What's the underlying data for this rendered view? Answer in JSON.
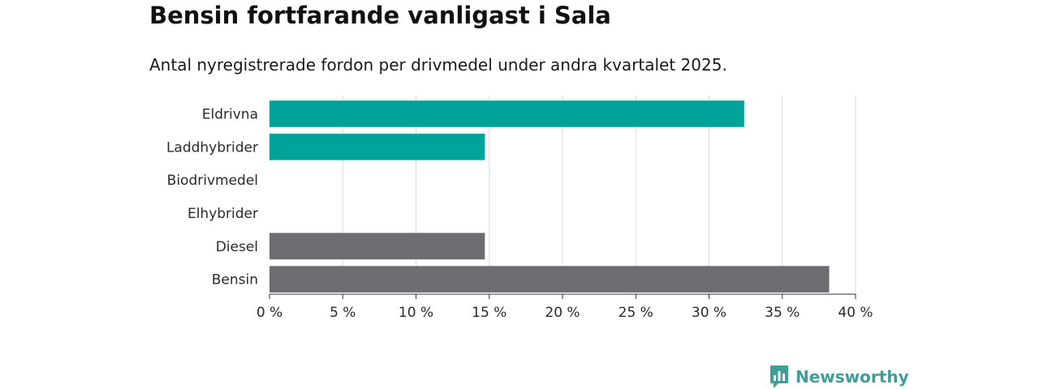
{
  "title": "Bensin fortfarande vanligast i Sala",
  "subtitle": "Antal nyregistrerade fordon per drivmedel under andra kvartalet 2025.",
  "brand": {
    "name": "Newsworthy",
    "icon": "newsworthy-logo-icon"
  },
  "colors": {
    "accent": "#00a39a",
    "neutral": "#6d6c71",
    "grid": "#d9d9d9",
    "brand": "#3f9e97"
  },
  "chart_data": {
    "type": "bar",
    "orientation": "horizontal",
    "title": "Bensin fortfarande vanligast i Sala",
    "subtitle": "Antal nyregistrerade fordon per drivmedel under andra kvartalet 2025.",
    "categories": [
      "Eldrivna",
      "Laddhybrider",
      "Biodrivmedel",
      "Elhybrider",
      "Diesel",
      "Bensin"
    ],
    "values": [
      32.4,
      14.7,
      0,
      0,
      14.7,
      38.2
    ],
    "bar_colors": [
      "#00a39a",
      "#00a39a",
      "#00a39a",
      "#00a39a",
      "#6d6c71",
      "#6d6c71"
    ],
    "xlim": [
      0,
      40
    ],
    "xticks": [
      0,
      5,
      10,
      15,
      20,
      25,
      30,
      35,
      40
    ],
    "xtick_labels": [
      "0 %",
      "5 %",
      "10 %",
      "15 %",
      "20 %",
      "25 %",
      "30 %",
      "35 %",
      "40 %"
    ],
    "grid": true,
    "legend": "none"
  }
}
